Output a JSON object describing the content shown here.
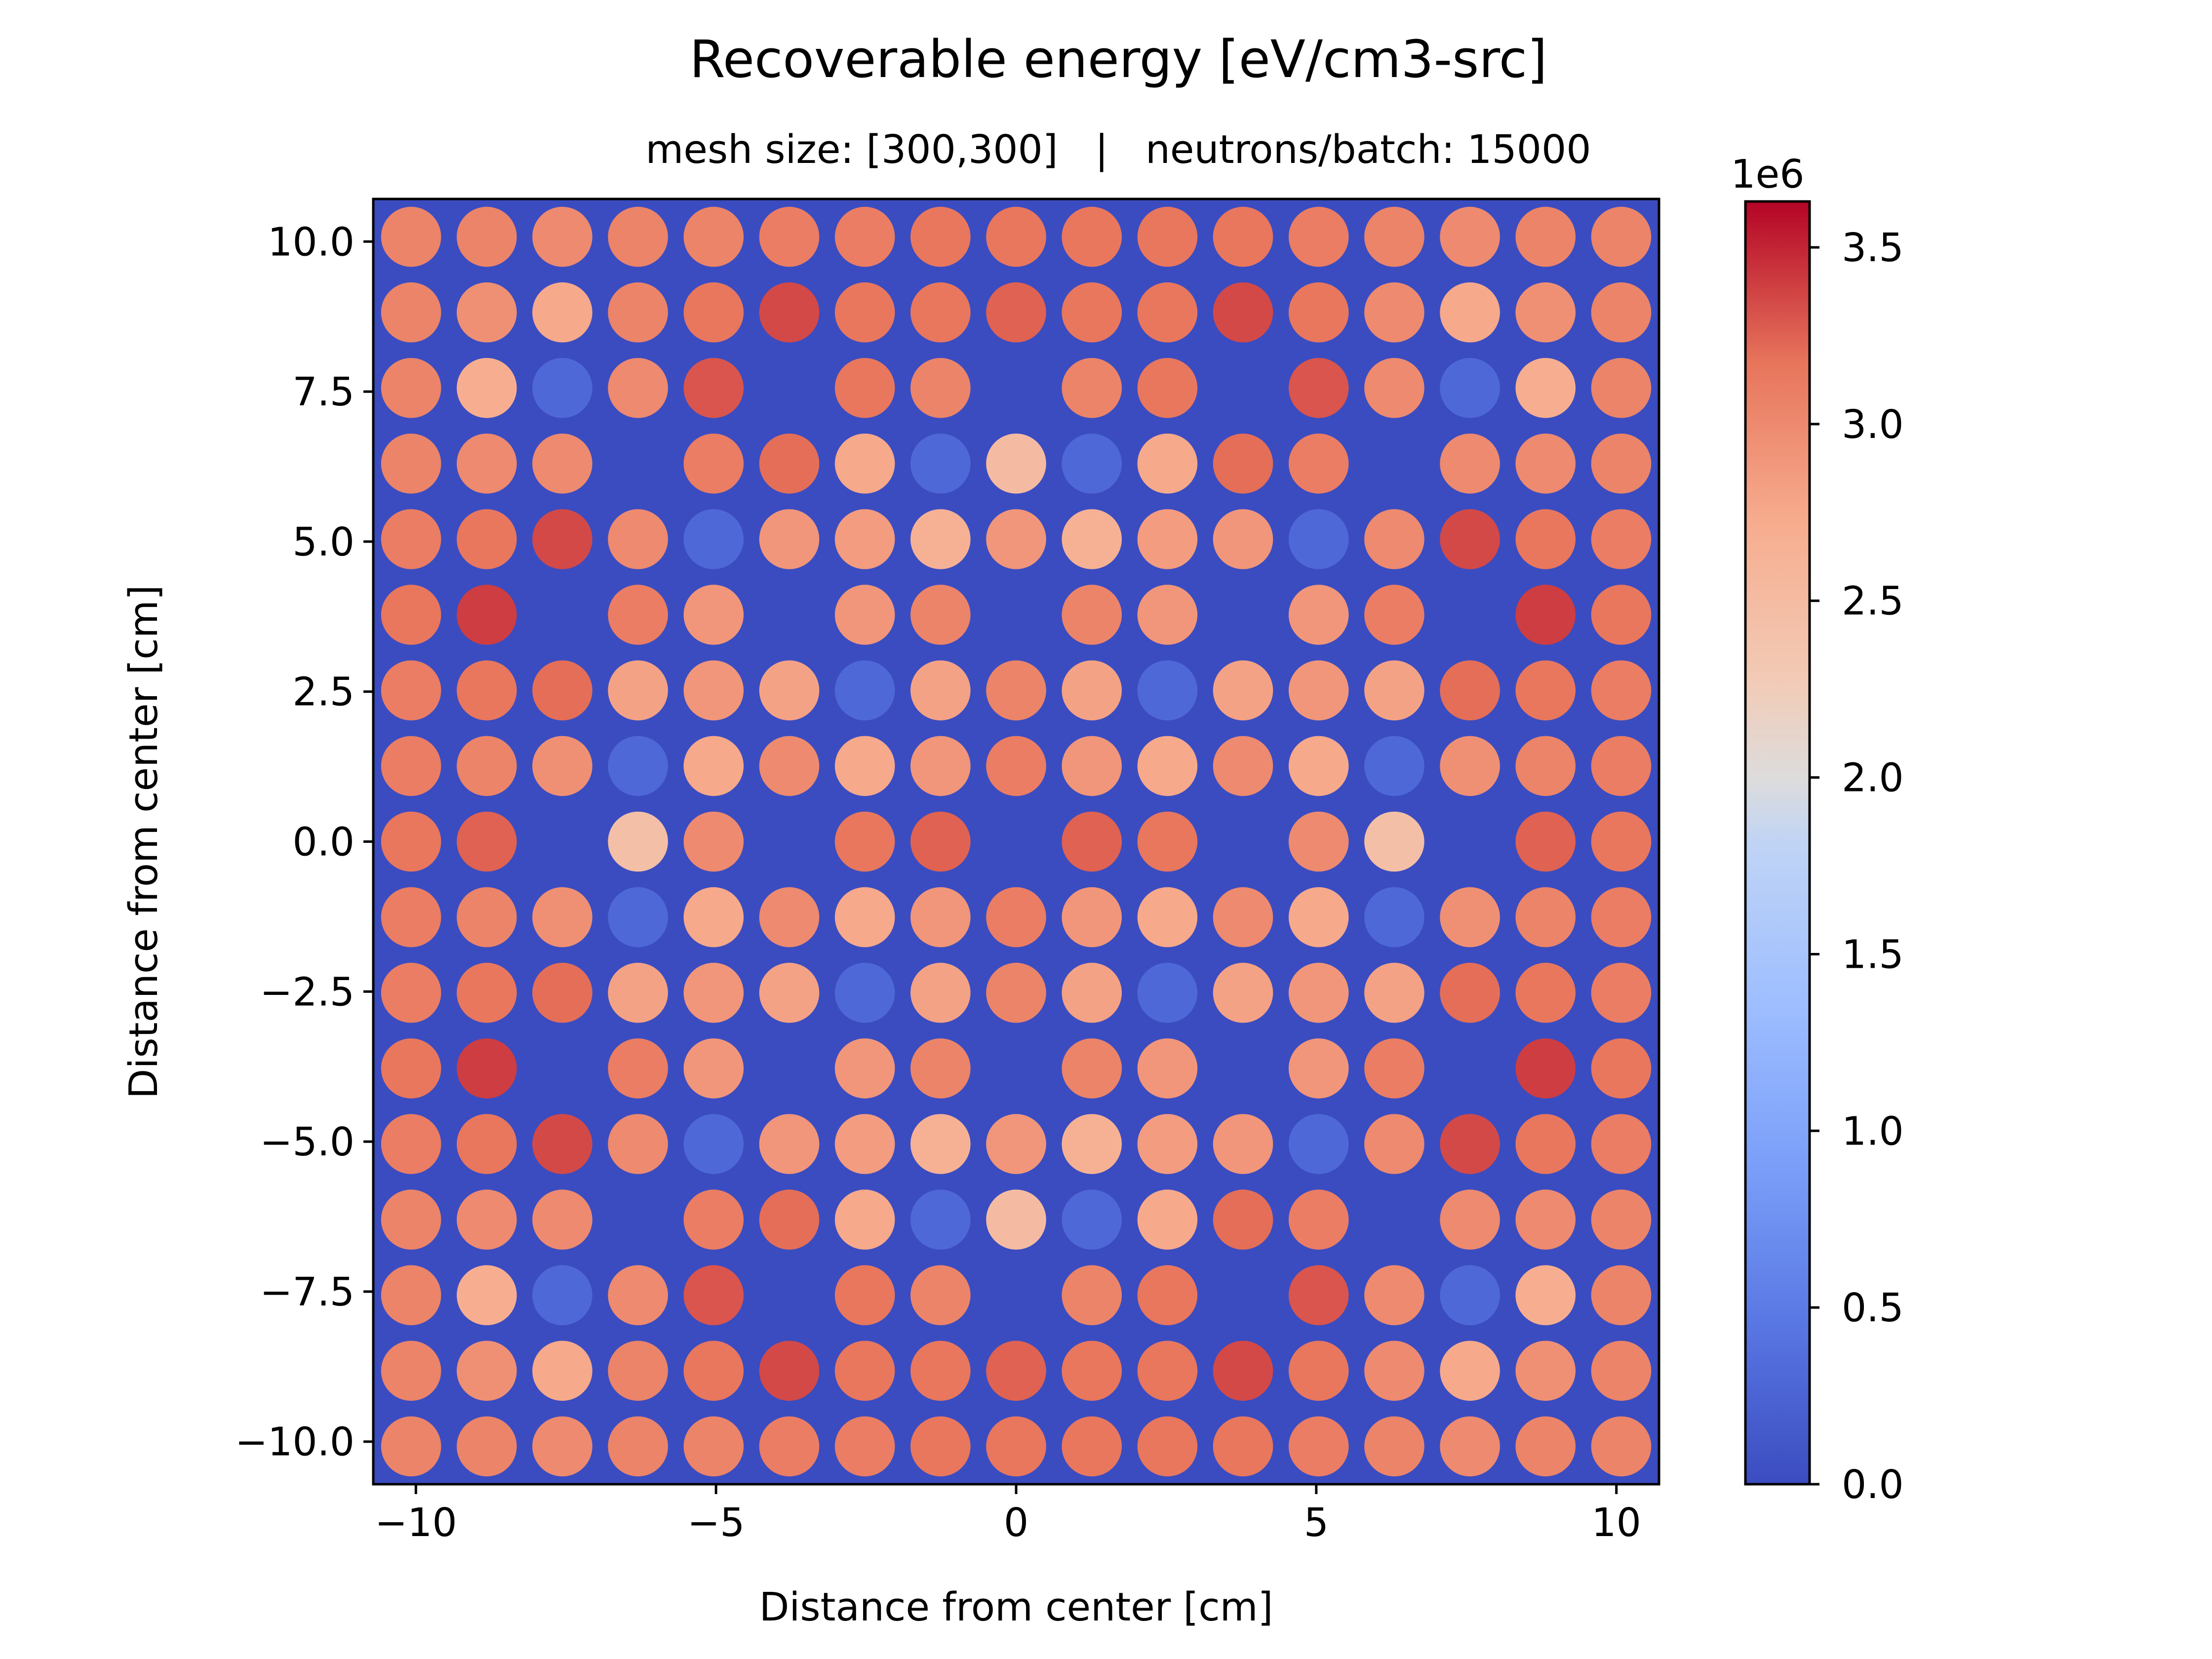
{
  "chart_data": {
    "type": "heatmap",
    "title": "Recoverable energy [eV/cm3-src]",
    "subtitle": "mesh size: [300,300]   |   neutrons/batch: 15000",
    "xlabel": "Distance from center [cm]",
    "ylabel": "Distance from center [cm]",
    "xlim": [
      -10.71,
      10.71
    ],
    "ylim": [
      -10.71,
      10.71
    ],
    "x_ticks": [
      -10,
      -5,
      0,
      5,
      10
    ],
    "x_tick_labels": [
      "−10",
      "−5",
      "0",
      "5",
      "10"
    ],
    "y_ticks": [
      10.0,
      7.5,
      5.0,
      2.5,
      0.0,
      -2.5,
      -5.0,
      -7.5,
      -10.0
    ],
    "y_tick_labels": [
      "10.0",
      "7.5",
      "5.0",
      "2.5",
      "0.0",
      "−2.5",
      "−5.0",
      "−7.5",
      "−10.0"
    ],
    "grid": false,
    "colormap": "coolwarm",
    "colorbar": {
      "min": 0,
      "max": 3.63,
      "scale_label": "1e6",
      "ticks": [
        0.0,
        0.5,
        1.0,
        1.5,
        2.0,
        2.5,
        3.0,
        3.5
      ],
      "tick_labels": [
        "0.0",
        "0.5",
        "1.0",
        "1.5",
        "2.0",
        "2.5",
        "3.0",
        "3.5"
      ]
    },
    "background_value": 0.0,
    "pin_pitch": 1.26,
    "pin_radius": 0.5,
    "grid_coords": [
      -10.08,
      -8.82,
      -7.56,
      -6.3,
      -5.04,
      -3.78,
      -2.52,
      -1.26,
      0,
      1.26,
      2.52,
      3.78,
      5.04,
      6.3,
      7.56,
      8.82,
      10.08
    ],
    "values_unit_note": "values x 1e6; rows ordered top (y=10.08) to bottom (y=-10.08); null = no pin",
    "values": [
      [
        3.05,
        3.05,
        3.0,
        3.05,
        3.05,
        3.1,
        3.1,
        3.15,
        3.15,
        3.15,
        3.15,
        3.15,
        3.1,
        3.05,
        3.0,
        3.05,
        3.05
      ],
      [
        3.05,
        2.95,
        2.75,
        3.05,
        3.15,
        3.35,
        3.15,
        3.15,
        3.25,
        3.15,
        3.15,
        3.35,
        3.15,
        3.0,
        2.75,
        2.95,
        3.05
      ],
      [
        3.05,
        2.7,
        0.3,
        3.0,
        3.3,
        null,
        3.15,
        3.05,
        null,
        3.05,
        3.15,
        null,
        3.3,
        3.0,
        0.3,
        2.7,
        3.05
      ],
      [
        3.05,
        3.0,
        3.0,
        null,
        3.1,
        3.2,
        2.75,
        0.3,
        2.5,
        0.3,
        2.75,
        3.2,
        3.1,
        null,
        3.0,
        3.0,
        3.05
      ],
      [
        3.1,
        3.15,
        3.35,
        3.0,
        0.3,
        2.9,
        2.85,
        2.65,
        2.9,
        2.65,
        2.85,
        2.9,
        0.3,
        3.0,
        3.35,
        3.15,
        3.1
      ],
      [
        3.15,
        3.4,
        null,
        3.1,
        2.9,
        null,
        2.9,
        3.05,
        null,
        3.05,
        2.9,
        null,
        2.9,
        3.1,
        null,
        3.4,
        3.15
      ],
      [
        3.1,
        3.15,
        3.2,
        2.8,
        2.9,
        2.8,
        0.3,
        2.8,
        3.05,
        2.8,
        0.3,
        2.8,
        2.9,
        2.8,
        3.2,
        3.15,
        3.1
      ],
      [
        3.1,
        3.05,
        2.95,
        0.3,
        2.75,
        3.0,
        2.75,
        2.9,
        3.1,
        2.9,
        2.75,
        3.0,
        2.75,
        0.3,
        2.95,
        3.05,
        3.1
      ],
      [
        3.15,
        3.25,
        null,
        2.45,
        3.0,
        null,
        3.15,
        3.25,
        null,
        3.25,
        3.15,
        null,
        3.0,
        2.45,
        null,
        3.25,
        3.15
      ],
      [
        3.1,
        3.05,
        2.95,
        0.3,
        2.75,
        3.0,
        2.75,
        2.9,
        3.1,
        2.9,
        2.75,
        3.0,
        2.75,
        0.3,
        2.95,
        3.05,
        3.1
      ],
      [
        3.1,
        3.15,
        3.2,
        2.8,
        2.9,
        2.8,
        0.3,
        2.8,
        3.05,
        2.8,
        0.3,
        2.8,
        2.9,
        2.8,
        3.2,
        3.15,
        3.1
      ],
      [
        3.15,
        3.4,
        null,
        3.1,
        2.9,
        null,
        2.9,
        3.05,
        null,
        3.05,
        2.9,
        null,
        2.9,
        3.1,
        null,
        3.4,
        3.15
      ],
      [
        3.1,
        3.15,
        3.35,
        3.0,
        0.3,
        2.9,
        2.85,
        2.65,
        2.9,
        2.65,
        2.85,
        2.9,
        0.3,
        3.0,
        3.35,
        3.15,
        3.1
      ],
      [
        3.05,
        3.0,
        3.0,
        null,
        3.1,
        3.2,
        2.75,
        0.3,
        2.5,
        0.3,
        2.75,
        3.2,
        3.1,
        null,
        3.0,
        3.0,
        3.05
      ],
      [
        3.05,
        2.7,
        0.3,
        3.0,
        3.3,
        null,
        3.15,
        3.05,
        null,
        3.05,
        3.15,
        null,
        3.3,
        3.0,
        0.3,
        2.7,
        3.05
      ],
      [
        3.05,
        2.95,
        2.75,
        3.05,
        3.15,
        3.35,
        3.15,
        3.15,
        3.25,
        3.15,
        3.15,
        3.35,
        3.15,
        3.0,
        2.75,
        2.95,
        3.05
      ],
      [
        3.05,
        3.05,
        3.0,
        3.05,
        3.05,
        3.1,
        3.1,
        3.15,
        3.15,
        3.15,
        3.15,
        3.15,
        3.1,
        3.05,
        3.0,
        3.05,
        3.05
      ]
    ]
  }
}
